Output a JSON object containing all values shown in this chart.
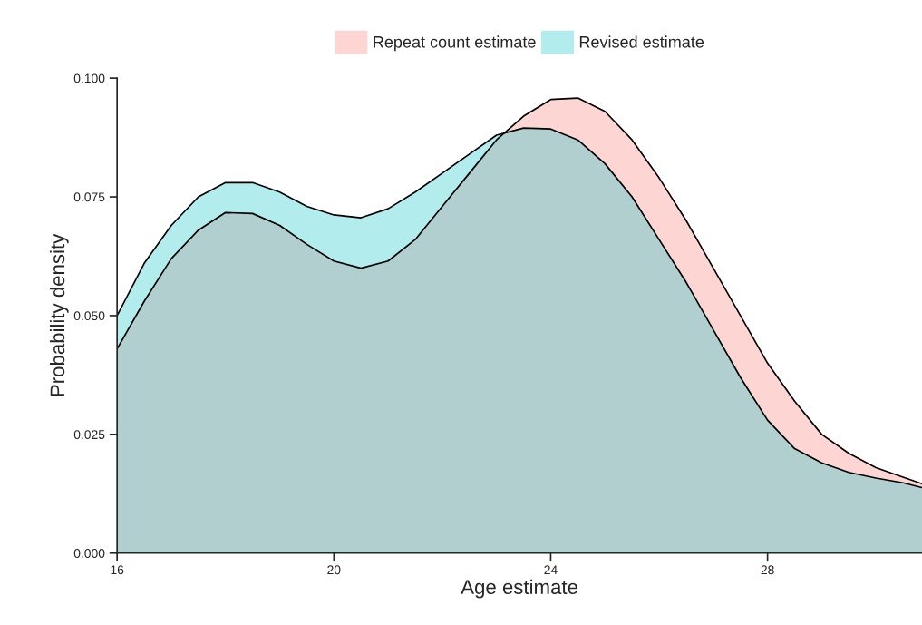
{
  "chart_data": {
    "type": "area",
    "xlabel": "Age estimate",
    "ylabel": "Probability density",
    "x": [
      16,
      16.5,
      17,
      17.5,
      18,
      18.5,
      19,
      19.5,
      20,
      20.5,
      21,
      21.5,
      22,
      22.5,
      23,
      23.5,
      24,
      24.5,
      25,
      25.5,
      26,
      26.5,
      27,
      27.5,
      28,
      28.5,
      29,
      29.5,
      30,
      30.5,
      30.85
    ],
    "series": [
      {
        "name": "Repeat count estimate",
        "color": "#f8766d",
        "values": [
          0.043,
          0.053,
          0.062,
          0.068,
          0.0717,
          0.0715,
          0.069,
          0.065,
          0.0615,
          0.06,
          0.0615,
          0.066,
          0.073,
          0.08,
          0.087,
          0.092,
          0.0955,
          0.0958,
          0.093,
          0.087,
          0.079,
          0.07,
          0.06,
          0.05,
          0.04,
          0.032,
          0.025,
          0.021,
          0.018,
          0.016,
          0.0146
        ]
      },
      {
        "name": "Revised estimate",
        "color": "#00bfc4",
        "values": [
          0.05,
          0.061,
          0.069,
          0.075,
          0.078,
          0.078,
          0.076,
          0.073,
          0.0712,
          0.0706,
          0.0725,
          0.076,
          0.08,
          0.084,
          0.088,
          0.0895,
          0.0893,
          0.087,
          0.082,
          0.075,
          0.066,
          0.057,
          0.047,
          0.037,
          0.028,
          0.022,
          0.019,
          0.017,
          0.0158,
          0.0148,
          0.0138
        ]
      }
    ],
    "xlim": [
      16,
      30.85
    ],
    "xticks": [
      16,
      20,
      24,
      28
    ],
    "ylim": [
      0,
      0.1
    ],
    "yticks": [
      {
        "value": 0,
        "label": "0.000"
      },
      {
        "value": 0.025,
        "label": "0.025"
      },
      {
        "value": 0.05,
        "label": "0.050"
      },
      {
        "value": 0.075,
        "label": "0.075"
      },
      {
        "value": 0.1,
        "label": "0.100"
      }
    ],
    "grid": false,
    "legend": "top"
  }
}
